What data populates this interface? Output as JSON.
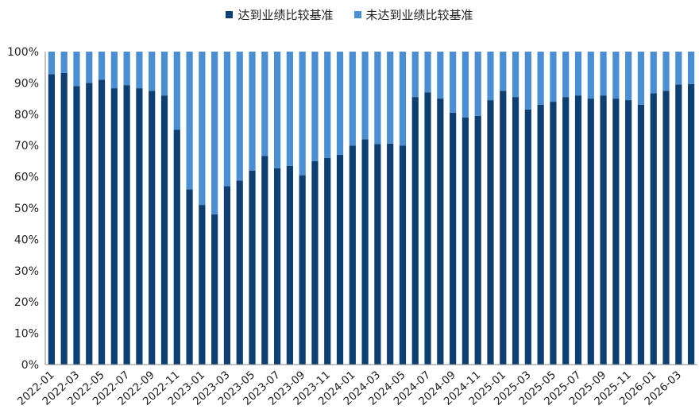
{
  "chart_data": {
    "type": "bar",
    "stacked": true,
    "title": "",
    "xlabel": "",
    "ylabel": "",
    "ylim": [
      0,
      100
    ],
    "y_ticks": [
      "0%",
      "10%",
      "20%",
      "30%",
      "40%",
      "50%",
      "60%",
      "70%",
      "80%",
      "90%",
      "100%"
    ],
    "legend_position": "top-center",
    "grid": false,
    "colors": {
      "met": "#0d3f73",
      "not_met": "#4a8ed3"
    },
    "categories": [
      "2022-01",
      "2022-02",
      "2022-03",
      "2022-04",
      "2022-05",
      "2022-06",
      "2022-07",
      "2022-08",
      "2022-09",
      "2022-10",
      "2022-11",
      "2022-12",
      "2023-01",
      "2023-02",
      "2023-03",
      "2023-04",
      "2023-05",
      "2023-06",
      "2023-07",
      "2023-08",
      "2023-09",
      "2023-10",
      "2023-11",
      "2023-12",
      "2024-01",
      "2024-02",
      "2024-03",
      "2024-04",
      "2024-05",
      "2024-06",
      "2024-07",
      "2024-08",
      "2024-09",
      "2024-10",
      "2024-11",
      "2024-12",
      "2025-01",
      "2025-02",
      "2025-03",
      "2025-04",
      "2025-05",
      "2025-06",
      "2025-07",
      "2025-08",
      "2025-09",
      "2025-10",
      "2025-11",
      "2025-12",
      "2026-01",
      "2026-02",
      "2026-03",
      "2026-04"
    ],
    "x_tick_labels": [
      "2022-01",
      "2022-03",
      "2022-05",
      "2022-07",
      "2022-09",
      "2022-11",
      "2023-01",
      "2023-03",
      "2023-05",
      "2023-07",
      "2023-09",
      "2023-11",
      "2024-01",
      "2024-03",
      "2024-05",
      "2024-07",
      "2024-09",
      "2024-11",
      "2025-01",
      "2025-03",
      "2025-05",
      "2025-07",
      "2025-09",
      "2025-11",
      "2026-01",
      "2026-03"
    ],
    "series": [
      {
        "name": "达到业绩比较基准",
        "values": [
          92.8,
          93.2,
          89.0,
          90.0,
          91.0,
          88.3,
          89.3,
          88.3,
          87.5,
          86.0,
          75.0,
          56.0,
          51.0,
          48.0,
          57.0,
          58.8,
          62.0,
          66.7,
          62.7,
          63.5,
          60.5,
          65.0,
          66.0,
          67.0,
          70.0,
          72.0,
          70.5,
          70.6,
          70.0,
          85.5,
          87.0,
          85.0,
          80.5,
          79.0,
          79.5,
          84.5,
          87.5,
          85.5,
          81.5,
          83.0,
          84.0,
          85.5,
          86.0,
          85.0,
          86.0,
          85.0,
          84.5,
          83.0,
          86.7,
          87.5,
          89.5,
          89.6
        ]
      },
      {
        "name": "未达到业绩比较基准",
        "values": [
          7.2,
          6.8,
          11.0,
          10.0,
          9.0,
          11.7,
          10.7,
          11.7,
          12.5,
          14.0,
          25.0,
          44.0,
          49.0,
          52.0,
          43.0,
          41.2,
          38.0,
          33.3,
          37.3,
          36.5,
          39.5,
          35.0,
          34.0,
          33.0,
          30.0,
          28.0,
          29.5,
          29.4,
          30.0,
          14.5,
          13.0,
          15.0,
          19.5,
          21.0,
          20.5,
          15.5,
          12.5,
          14.5,
          18.5,
          17.0,
          16.0,
          14.5,
          14.0,
          15.0,
          14.0,
          15.0,
          15.5,
          17.0,
          13.3,
          12.5,
          10.5,
          10.4
        ]
      }
    ]
  }
}
